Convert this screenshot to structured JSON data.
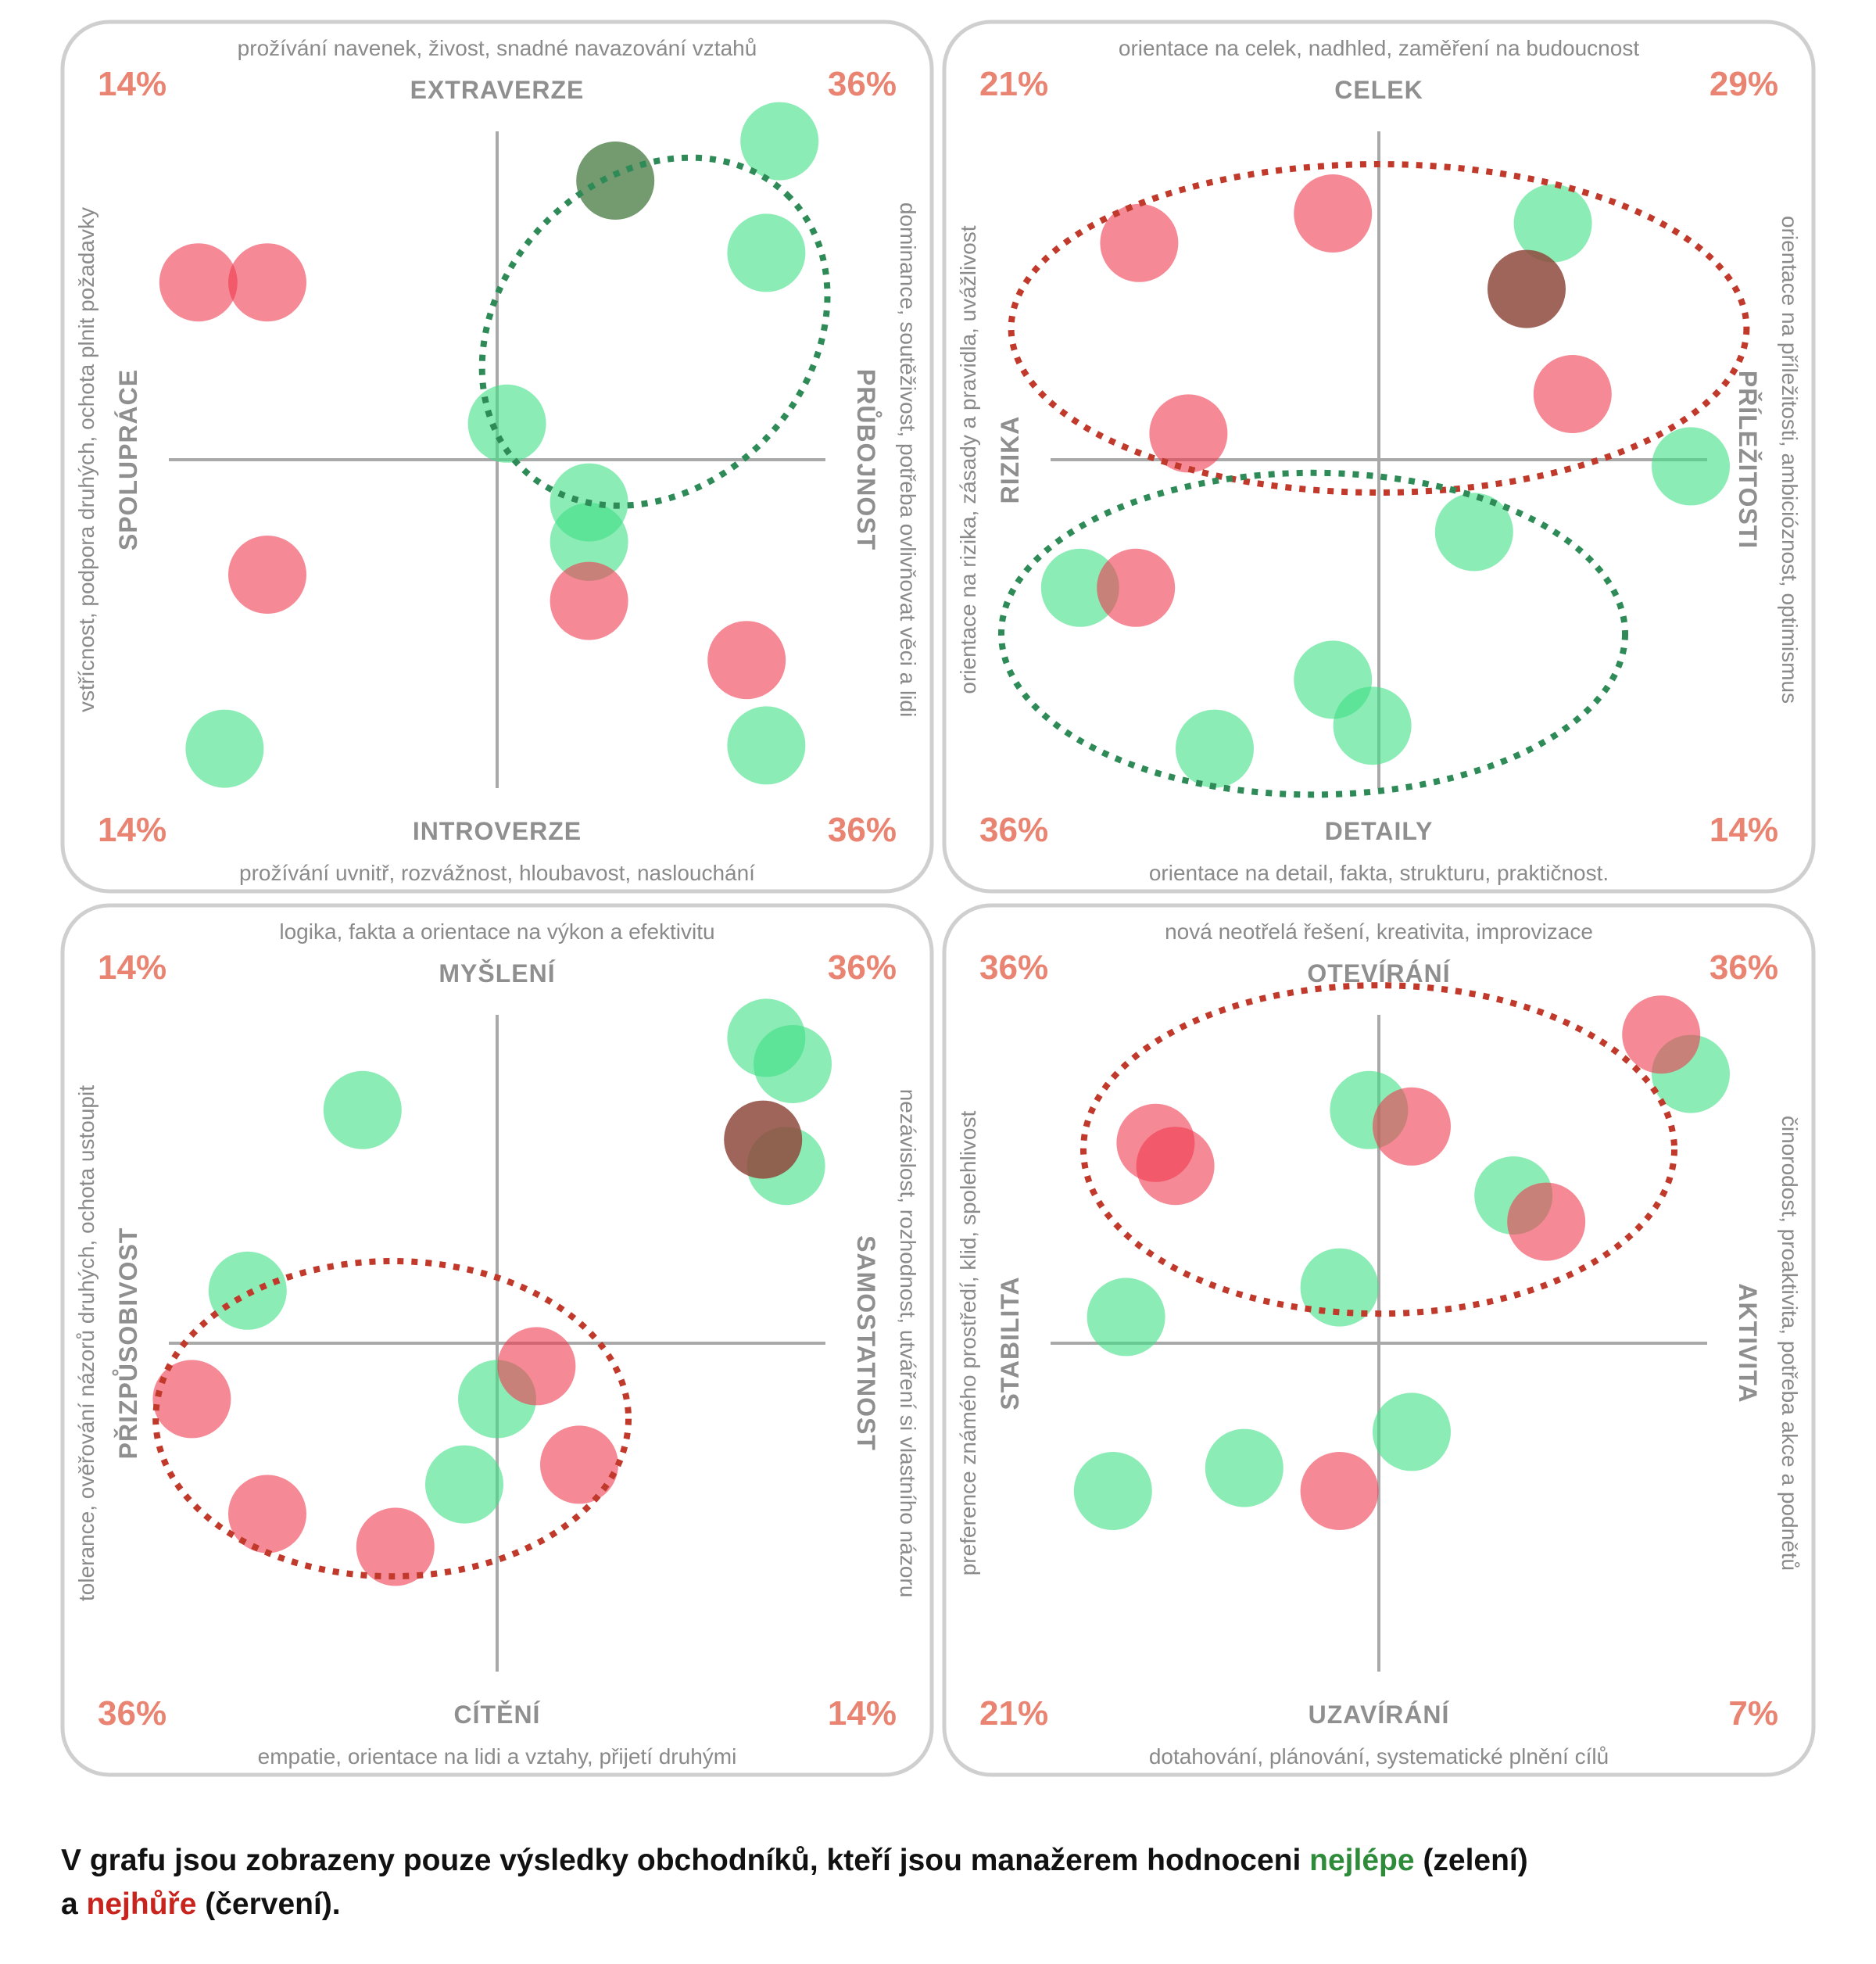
{
  "colors": {
    "best": "#3fdf86",
    "worst": "#f03a50",
    "overlap_dark_green": "#5a8a56",
    "overlap_dark_red": "#8e4a3d",
    "percent": "#ea8472",
    "oval_green": "#2e8b57",
    "oval_red": "#c0392b"
  },
  "chart_data": [
    {
      "type": "scatter",
      "axes": {
        "top": "EXTRAVERZE",
        "bottom": "INTROVERZE",
        "left": "SPOLUPRÁCE",
        "right": "PRŮBOJNOST"
      },
      "descriptions": {
        "top": "prožívání navenek, živost, snadné navazování vztahů",
        "bottom": "prožívání uvnitř, rozvážnost, hloubavost, naslouchání",
        "left": "vstřícnost, podpora druhých, ochota plnit požadavky",
        "right": "dominance, soutěživost, potřeba ovlivňovat věci a lidi"
      },
      "quadrant_percentages": {
        "top_left": "14%",
        "top_right": "36%",
        "bottom_left": "14%",
        "bottom_right": "36%"
      },
      "xlim": [
        -1,
        1
      ],
      "ylim": [
        -1,
        1
      ],
      "series": [
        {
          "name": "nejlépe",
          "color": "green",
          "points": [
            [
              0.86,
              0.97
            ],
            [
              0.82,
              0.63
            ],
            [
              0.03,
              0.11
            ],
            [
              0.28,
              -0.13
            ],
            [
              0.28,
              -0.25
            ],
            [
              -0.83,
              -0.88
            ],
            [
              0.82,
              -0.87
            ]
          ]
        },
        {
          "name": "nejhůře",
          "color": "red",
          "points": [
            [
              -0.91,
              0.54
            ],
            [
              -0.7,
              0.54
            ],
            [
              -0.7,
              -0.35
            ],
            [
              0.28,
              -0.43
            ],
            [
              0.76,
              -0.61
            ]
          ]
        },
        {
          "name": "overlap",
          "color": "dark-green",
          "points": [
            [
              0.36,
              0.85
            ]
          ]
        }
      ],
      "ovals": [
        {
          "color": "green",
          "cx": 0.48,
          "cy": 0.39,
          "rx": 0.58,
          "ry": 0.47,
          "rotation_deg": -46
        }
      ]
    },
    {
      "type": "scatter",
      "axes": {
        "top": "CELEK",
        "bottom": "DETAILY",
        "left": "RIZIKA",
        "right": "PŘÍLEŽITOSTI"
      },
      "descriptions": {
        "top": "orientace na celek, nadhled, zaměření na budoucnost",
        "bottom": "orientace na detail, fakta, strukturu, praktičnost.",
        "left": "orientace na rizika, zásady a pravidla, uvážlivost",
        "right": "orientace na příležitosti, ambicióznost, optimismus"
      },
      "quadrant_percentages": {
        "top_left": "21%",
        "top_right": "29%",
        "bottom_left": "36%",
        "bottom_right": "14%"
      },
      "xlim": [
        -1,
        1
      ],
      "ylim": [
        -1,
        1
      ],
      "series": [
        {
          "name": "nejlépe",
          "color": "green",
          "points": [
            [
              0.53,
              0.72
            ],
            [
              0.95,
              -0.02
            ],
            [
              0.29,
              -0.22
            ],
            [
              -0.91,
              -0.39
            ],
            [
              -0.14,
              -0.67
            ],
            [
              -0.02,
              -0.81
            ],
            [
              -0.5,
              -0.88
            ]
          ]
        },
        {
          "name": "nejhůře",
          "color": "red",
          "points": [
            [
              -0.73,
              0.66
            ],
            [
              -0.14,
              0.75
            ],
            [
              0.59,
              0.2
            ],
            [
              -0.58,
              0.08
            ],
            [
              -0.74,
              -0.39
            ]
          ]
        },
        {
          "name": "overlap",
          "color": "dark-red",
          "points": [
            [
              0.45,
              0.52
            ]
          ]
        }
      ],
      "ovals": [
        {
          "color": "red",
          "cx": 0.0,
          "cy": 0.4,
          "rx": 1.12,
          "ry": 0.5,
          "rotation_deg": 0
        },
        {
          "color": "green",
          "cx": -0.2,
          "cy": -0.53,
          "rx": 0.95,
          "ry": 0.49,
          "rotation_deg": 0
        }
      ]
    },
    {
      "type": "scatter",
      "axes": {
        "top": "MYŠLENÍ",
        "bottom": "CÍTĚNÍ",
        "left": "PŘIZPŮSOBIVOST",
        "right": "SAMOSTATNOST"
      },
      "descriptions": {
        "top": "logika, fakta a orientace na výkon a efektivitu",
        "bottom": "empatie, orientace na lidi a vztahy, přijetí druhými",
        "left": "tolerance, ověřování názorů druhých, ochota ustoupit",
        "right": "nezávislost, rozhodnost, utváření si vlastního názoru"
      },
      "quadrant_percentages": {
        "top_left": "14%",
        "top_right": "36%",
        "bottom_left": "36%",
        "bottom_right": "14%"
      },
      "xlim": [
        -1,
        1
      ],
      "ylim": [
        -1,
        1
      ],
      "series": [
        {
          "name": "nejlépe",
          "color": "green",
          "points": [
            [
              0.82,
              0.93
            ],
            [
              0.9,
              0.85
            ],
            [
              0.88,
              0.54
            ],
            [
              -0.41,
              0.71
            ],
            [
              -0.76,
              0.16
            ],
            [
              0.0,
              -0.17
            ],
            [
              -0.1,
              -0.43
            ]
          ]
        },
        {
          "name": "nejhůře",
          "color": "red",
          "points": [
            [
              0.12,
              -0.07
            ],
            [
              -0.93,
              -0.17
            ],
            [
              0.25,
              -0.37
            ],
            [
              -0.7,
              -0.52
            ],
            [
              -0.31,
              -0.62
            ]
          ]
        },
        {
          "name": "overlap",
          "color": "dark-red",
          "points": [
            [
              0.81,
              0.62
            ]
          ]
        }
      ],
      "ovals": [
        {
          "color": "red",
          "cx": -0.32,
          "cy": -0.23,
          "rx": 0.72,
          "ry": 0.48,
          "rotation_deg": 0
        }
      ]
    },
    {
      "type": "scatter",
      "axes": {
        "top": "OTEVÍRÁNÍ",
        "bottom": "UZAVÍRÁNÍ",
        "left": "STABILITA",
        "right": "AKTIVITA"
      },
      "descriptions": {
        "top": "nová neotřelá řešení, kreativita, improvizace",
        "bottom": "dotahování, plánování, systematické plnění cílů",
        "left": "preference známého prostředí, klid, spolehlivost",
        "right": "činorodost, proaktivita, potřeba akce a podnětů"
      },
      "quadrant_percentages": {
        "top_left": "36%",
        "top_right": "36%",
        "bottom_left": "21%",
        "bottom_right": "7%"
      },
      "xlim": [
        -1,
        1
      ],
      "ylim": [
        -1,
        1
      ],
      "series": [
        {
          "name": "nejlépe",
          "color": "green",
          "points": [
            [
              0.95,
              0.82
            ],
            [
              -0.03,
              0.71
            ],
            [
              0.41,
              0.45
            ],
            [
              -0.12,
              0.17
            ],
            [
              -0.77,
              0.08
            ],
            [
              0.1,
              -0.27
            ],
            [
              -0.41,
              -0.38
            ],
            [
              -0.81,
              -0.45
            ]
          ]
        },
        {
          "name": "nejhůře",
          "color": "red",
          "points": [
            [
              0.86,
              0.94
            ],
            [
              0.1,
              0.66
            ],
            [
              -0.68,
              0.61
            ],
            [
              -0.62,
              0.54
            ],
            [
              0.51,
              0.37
            ],
            [
              -0.12,
              -0.45
            ]
          ]
        }
      ],
      "ovals": [
        {
          "color": "red",
          "cx": 0.0,
          "cy": 0.59,
          "rx": 0.9,
          "ry": 0.5,
          "rotation_deg": 0
        }
      ]
    }
  ],
  "footer": {
    "line1_before": "V grafu jsou zobrazeny pouze výsledky obchodníků, kteří jsou manažerem hodnoceni ",
    "best_word": "nejlépe",
    "line1_after": " (zelení)",
    "line2_before": "a ",
    "worst_word": "nejhůře",
    "line2_after": " (červení)."
  }
}
